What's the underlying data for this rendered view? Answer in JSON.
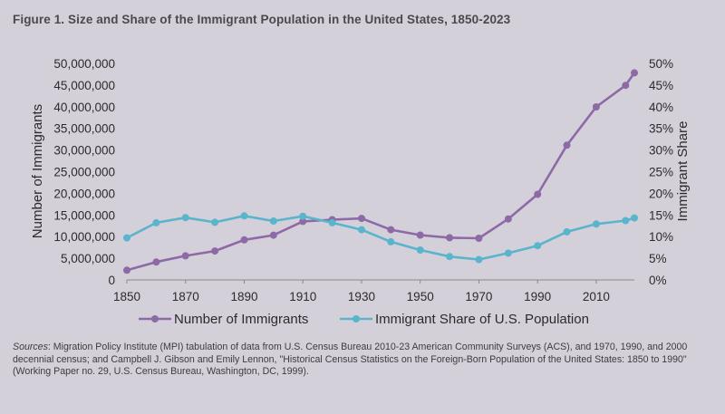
{
  "figure_title": "Figure 1. Size and Share of the Immigrant Population in the United States, 1850-2023",
  "chart_data": {
    "type": "line",
    "xlabel": "",
    "ylabel_left": "Number of Immigrants",
    "ylabel_right": "Immigrant Share",
    "x_ticks": [
      1850,
      1870,
      1890,
      1910,
      1930,
      1950,
      1970,
      1990,
      2010
    ],
    "x_range": [
      1850,
      2023
    ],
    "y_left_range": [
      0,
      50000000
    ],
    "y_left_ticks": [
      "0",
      "5,000,000",
      "10,000,000",
      "15,000,000",
      "20,000,000",
      "25,000,000",
      "30,000,000",
      "35,000,000",
      "40,000,000",
      "45,000,000",
      "50,000,000"
    ],
    "y_right_range": [
      0,
      50
    ],
    "y_right_ticks": [
      "0%",
      "5%",
      "10%",
      "15%",
      "20%",
      "25%",
      "30%",
      "35%",
      "40%",
      "45%",
      "50%"
    ],
    "grid": false,
    "legend_position": "bottom",
    "series": [
      {
        "name": "Number of Immigrants",
        "axis": "left",
        "color": "#8d6aa6",
        "x": [
          1850,
          1860,
          1870,
          1880,
          1890,
          1900,
          1910,
          1920,
          1930,
          1940,
          1950,
          1960,
          1970,
          1980,
          1990,
          2000,
          2010,
          2020,
          2023
        ],
        "values": [
          2240000,
          4140000,
          5570000,
          6680000,
          9250000,
          10340000,
          13520000,
          13920000,
          14200000,
          11590000,
          10350000,
          9740000,
          9620000,
          14080000,
          19770000,
          31110000,
          39960000,
          44930000,
          47830000
        ]
      },
      {
        "name": "Immigrant Share of U.S. Population",
        "axis": "right",
        "color": "#5ab4cc",
        "x": [
          1850,
          1860,
          1870,
          1880,
          1890,
          1900,
          1910,
          1920,
          1930,
          1940,
          1950,
          1960,
          1970,
          1980,
          1990,
          2000,
          2010,
          2020,
          2023
        ],
        "values": [
          9.7,
          13.2,
          14.4,
          13.3,
          14.8,
          13.6,
          14.7,
          13.2,
          11.6,
          8.8,
          6.9,
          5.4,
          4.7,
          6.2,
          7.9,
          11.1,
          12.9,
          13.7,
          14.3
        ]
      }
    ]
  },
  "sources": {
    "lead": "Sources",
    "text": ": Migration Policy Institute (MPI) tabulation of data from U.S. Census Bureau 2010-23 American Community Surveys (ACS), and 1970, 1990, and 2000 decennial census; and Campbell J. Gibson and Emily Lennon, \"Historical Census Statistics on the Foreign-Born Population of the United States: 1850 to 1990\" (Working Paper no. 29, U.S. Census Bureau, Washington, DC, 1999)."
  }
}
